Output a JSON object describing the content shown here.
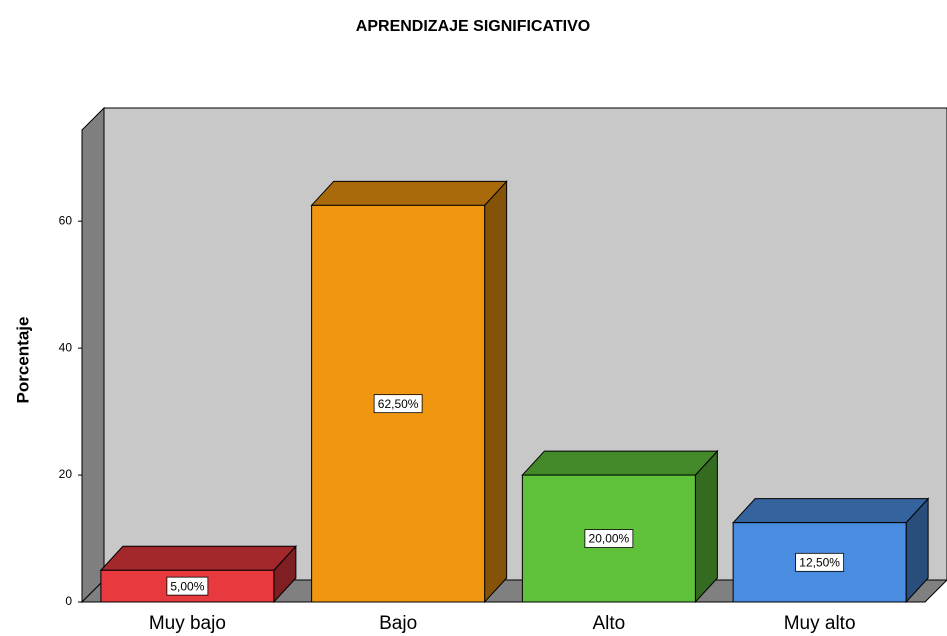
{
  "chart_data": {
    "type": "bar3d",
    "title": "APRENDIZAJE SIGNIFICATIVO",
    "y_label": "Porcentaje",
    "categories": [
      "Muy bajo",
      "Bajo",
      "Alto",
      "Muy alto"
    ],
    "values": [
      5,
      62.5,
      20,
      12.5
    ],
    "value_labels": [
      "5,00%",
      "62,50%",
      "20,00%",
      "12,50%"
    ],
    "colors": [
      "#e8393f",
      "#f0970f",
      "#5fc23a",
      "#4a8de0"
    ],
    "ylim": [
      0,
      75
    ],
    "yticks": [
      0,
      20,
      40,
      60
    ]
  }
}
